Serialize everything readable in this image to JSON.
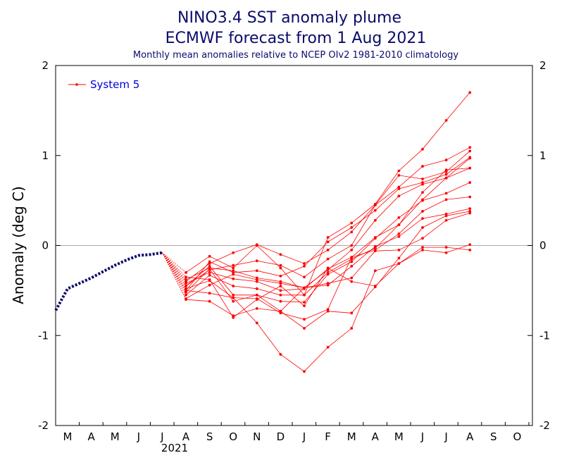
{
  "chart_data": {
    "type": "line",
    "title": "NINO3.4 SST anomaly plume",
    "title_line2": "ECMWF forecast from 1 Aug 2021",
    "subtitle": "Monthly mean anomalies relative to NCEP OIv2 1981-2010 climatology",
    "ylabel": "Anomaly (deg C)",
    "xlabel": "",
    "year_label": "2021",
    "ylim": [
      -2,
      2
    ],
    "yticks": [
      -2,
      -1,
      0,
      1,
      2
    ],
    "months": [
      "M",
      "A",
      "M",
      "J",
      "J",
      "A",
      "S",
      "O",
      "N",
      "D",
      "J",
      "F",
      "M",
      "A",
      "M",
      "J",
      "J",
      "A",
      "S",
      "O"
    ],
    "legend": {
      "label": "System 5",
      "placement": "top-left"
    },
    "colors": {
      "observed": "#0b0b6b",
      "forecast": "#ff0000",
      "zero_line": "#aaaaaa",
      "title": "#0b0b6b",
      "legend_text": "#0000dd"
    },
    "observed": {
      "x": [
        -0.5,
        0,
        0.5,
        1,
        1.5,
        2,
        2.5,
        3,
        3.5,
        4
      ],
      "y": [
        -0.72,
        -0.48,
        -0.42,
        -0.36,
        -0.29,
        -0.22,
        -0.16,
        -0.11,
        -0.1,
        -0.08
      ]
    },
    "forecast_x": [
      5,
      6,
      7,
      8,
      9,
      10,
      11,
      12,
      13,
      14,
      15,
      16,
      17
    ],
    "series": [
      {
        "values": [
          -0.3,
          -0.12,
          -0.25,
          0.0,
          -0.25,
          -0.55,
          0.09,
          0.25,
          0.46,
          0.83,
          1.07,
          1.39,
          1.7
        ]
      },
      {
        "values": [
          -0.4,
          -0.2,
          -0.08,
          0.01,
          -0.1,
          -0.2,
          -0.05,
          0.15,
          0.45,
          0.65,
          0.88,
          0.95,
          1.09
        ]
      },
      {
        "values": [
          -0.45,
          -0.27,
          -0.22,
          -0.17,
          -0.22,
          -0.35,
          -0.15,
          0.0,
          0.45,
          0.78,
          0.74,
          0.82,
          1.05
        ]
      },
      {
        "values": [
          -0.5,
          -0.18,
          -0.3,
          -0.28,
          -0.34,
          -0.23,
          0.04,
          0.2,
          0.39,
          0.63,
          0.7,
          0.79,
          0.98
        ]
      },
      {
        "values": [
          -0.38,
          -0.25,
          -0.28,
          -0.36,
          -0.4,
          -0.47,
          -0.27,
          -0.05,
          0.28,
          0.55,
          0.68,
          0.75,
          0.97
        ]
      },
      {
        "values": [
          -0.42,
          -0.3,
          -0.37,
          -0.4,
          -0.5,
          -0.48,
          -0.26,
          -0.13,
          0.09,
          0.23,
          0.59,
          0.84,
          0.86
        ]
      },
      {
        "values": [
          -0.55,
          -0.33,
          -0.45,
          -0.48,
          -0.55,
          -0.55,
          -0.3,
          -0.15,
          -0.03,
          0.23,
          0.51,
          0.75,
          0.86
        ]
      },
      {
        "values": [
          -0.45,
          -0.23,
          -0.55,
          -0.55,
          -0.62,
          -0.63,
          -0.32,
          -0.18,
          0.08,
          0.31,
          0.5,
          0.58,
          0.7
        ]
      },
      {
        "values": [
          -0.48,
          -0.39,
          -0.58,
          -0.59,
          -0.75,
          -0.82,
          -0.71,
          -0.13,
          -0.05,
          0.13,
          0.38,
          0.51,
          0.54
        ]
      },
      {
        "values": [
          -0.59,
          -0.44,
          -0.32,
          -0.38,
          -0.42,
          -0.47,
          -0.44,
          -0.23,
          -0.01,
          0.1,
          0.3,
          0.35,
          0.41
        ]
      },
      {
        "values": [
          -0.52,
          -0.26,
          -0.62,
          -0.55,
          -0.73,
          -0.92,
          -0.73,
          -0.75,
          -0.46,
          -0.14,
          0.2,
          0.33,
          0.38
        ]
      },
      {
        "values": [
          -0.6,
          -0.62,
          -0.78,
          -0.7,
          -0.73,
          -0.47,
          -0.42,
          -0.36,
          -0.06,
          -0.05,
          0.08,
          0.28,
          0.36
        ]
      },
      {
        "values": [
          -0.35,
          -0.38,
          -0.8,
          -0.6,
          -0.45,
          -0.67,
          -0.25,
          -0.4,
          -0.45,
          -0.2,
          -0.05,
          -0.08,
          0.01
        ]
      },
      {
        "values": [
          -0.5,
          -0.53,
          -0.58,
          -0.86,
          -1.21,
          -1.4,
          -1.13,
          -0.92,
          -0.28,
          -0.2,
          -0.02,
          -0.02,
          -0.05
        ]
      }
    ]
  }
}
